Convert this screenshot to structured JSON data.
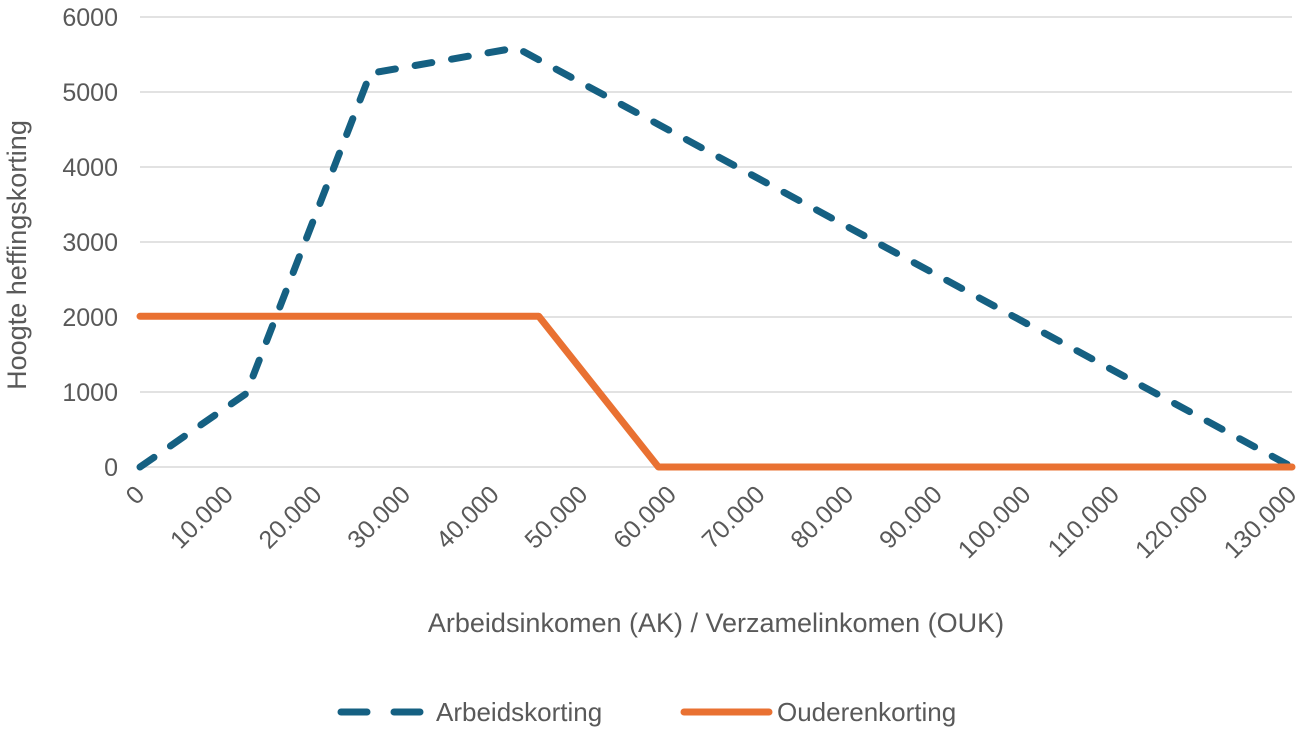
{
  "chart_data": {
    "type": "line",
    "title": "",
    "xlabel": "Arbeidsinkomen (AK) / Verzamelinkomen (OUK)",
    "ylabel": "Hoogte heffingskorting",
    "xlim": [
      0,
      130000
    ],
    "ylim": [
      0,
      6000
    ],
    "grid": "horizontal-only",
    "legend_position": "bottom-center",
    "x_ticks": {
      "values": [
        0,
        10000,
        20000,
        30000,
        40000,
        50000,
        60000,
        70000,
        80000,
        90000,
        100000,
        110000,
        120000,
        130000
      ],
      "labels": [
        "0",
        "10.000",
        "20.000",
        "30.000",
        "40.000",
        "50.000",
        "60.000",
        "70.000",
        "80.000",
        "90.000",
        "100.000",
        "110.000",
        "120.000",
        "130.000"
      ]
    },
    "y_ticks": {
      "values": [
        0,
        1000,
        2000,
        3000,
        4000,
        5000,
        6000
      ],
      "labels": [
        "0",
        "1000",
        "2000",
        "3000",
        "4000",
        "5000",
        "6000"
      ]
    },
    "series": [
      {
        "name": "Arbeidskorting",
        "color": "#156082",
        "style": "dashed",
        "points": [
          [
            0,
            0
          ],
          [
            12000,
            980
          ],
          [
            26000,
            5250
          ],
          [
            42500,
            5590
          ],
          [
            130000,
            0
          ]
        ]
      },
      {
        "name": "Ouderenkorting",
        "color": "#E97132",
        "style": "solid",
        "points": [
          [
            0,
            2010
          ],
          [
            45000,
            2010
          ],
          [
            58500,
            0
          ],
          [
            130000,
            0
          ]
        ]
      }
    ],
    "colors": {
      "gridline": "#D9D9D9",
      "axis_text": "#595959"
    }
  }
}
